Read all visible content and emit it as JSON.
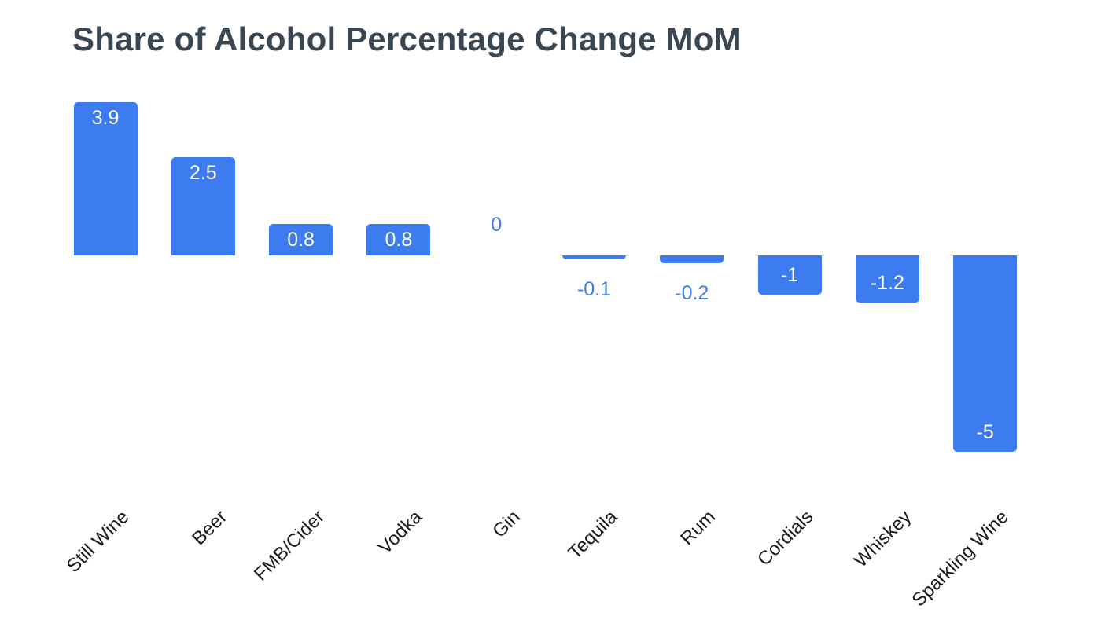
{
  "title": {
    "text": "Share of Alcohol Percentage Change MoM"
  },
  "chart_data": {
    "type": "bar",
    "title": "Share of Alcohol Percentage Change MoM",
    "categories": [
      "Still Wine",
      "Beer",
      "FMB/Cider",
      "Vodka",
      "Gin",
      "Tequila",
      "Rum",
      "Cordials",
      "Whiskey",
      "Sparkling Wine"
    ],
    "values": [
      3.9,
      2.5,
      0.8,
      0.8,
      0,
      -0.1,
      -0.2,
      -1,
      -1.2,
      -5
    ],
    "value_labels": [
      "3.9",
      "2.5",
      "0.8",
      "0.8",
      "0",
      "-0.1",
      "-0.2",
      "-1",
      "-1.2",
      "-5"
    ],
    "series_name": "",
    "xlabel": "",
    "ylabel": "",
    "ylim": [
      -5,
      3.9
    ],
    "baseline": 0,
    "grid": false,
    "legend": "none",
    "x_tick_rotation_deg": -45,
    "colors": {
      "bar": "#3D7CF0",
      "label_inside": "#FFFFFF",
      "label_outside": "#3D7CF0",
      "title": "#3A4752",
      "axis_label": "#1A1A1A",
      "background": "#FFFFFF"
    }
  }
}
